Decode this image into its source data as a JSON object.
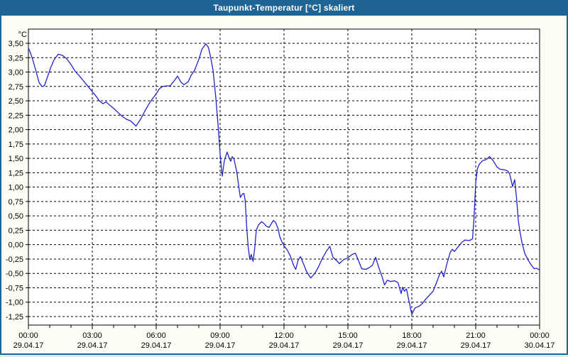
{
  "window": {
    "title": "Taupunkt-Temperatur [°C] skaliert"
  },
  "colors": {
    "titlebar": "#1E6494",
    "window_border": "#1E6494",
    "background": "#FCFEF5",
    "plot_background": "#FFFFFF",
    "grid": "#000000",
    "line": "#2222CC",
    "title_text": "#FFFFFF",
    "label_text": "#000000"
  },
  "chart_data": {
    "type": "line",
    "title": "Taupunkt-Temperatur [°C] skaliert",
    "unit_label": "°C",
    "x_unit": "hours since 29.04.17 00:00",
    "xlim": [
      0,
      24
    ],
    "ylim": [
      -1.4,
      3.76
    ],
    "grid": "dashed",
    "legend_position": "none",
    "y_ticks": [
      {
        "value": 3.5,
        "label": "3,50"
      },
      {
        "value": 3.25,
        "label": "3,25"
      },
      {
        "value": 3.0,
        "label": "3,00"
      },
      {
        "value": 2.75,
        "label": "2,75"
      },
      {
        "value": 2.5,
        "label": "2,50"
      },
      {
        "value": 2.25,
        "label": "2,25"
      },
      {
        "value": 2.0,
        "label": "2,00"
      },
      {
        "value": 1.75,
        "label": "1,75"
      },
      {
        "value": 1.5,
        "label": "1,50"
      },
      {
        "value": 1.25,
        "label": "1,25"
      },
      {
        "value": 1.0,
        "label": "1,00"
      },
      {
        "value": 0.75,
        "label": "0,75"
      },
      {
        "value": 0.5,
        "label": "0,50"
      },
      {
        "value": 0.25,
        "label": "0,25"
      },
      {
        "value": 0.0,
        "label": "0,00"
      },
      {
        "value": -0.25,
        "label": "-0,25"
      },
      {
        "value": -0.5,
        "label": "-0,50"
      },
      {
        "value": -0.75,
        "label": "-0,75"
      },
      {
        "value": -1.0,
        "label": "-1,00"
      },
      {
        "value": -1.25,
        "label": "-1,25"
      }
    ],
    "x_ticks": [
      {
        "hour": 0,
        "time": "00:00",
        "date": "29.04.17"
      },
      {
        "hour": 3,
        "time": "03:00",
        "date": "29.04.17"
      },
      {
        "hour": 6,
        "time": "06:00",
        "date": "29.04.17"
      },
      {
        "hour": 9,
        "time": "09:00",
        "date": "29.04.17"
      },
      {
        "hour": 12,
        "time": "12:00",
        "date": "29.04.17"
      },
      {
        "hour": 15,
        "time": "15:00",
        "date": "29.04.17"
      },
      {
        "hour": 18,
        "time": "18:00",
        "date": "29.04.17"
      },
      {
        "hour": 21,
        "time": "21:00",
        "date": "29.04.17"
      },
      {
        "hour": 24,
        "time": "00:00",
        "date": "30.04.17"
      }
    ],
    "minor_x_tick_step_hours": 1,
    "series": [
      {
        "name": "Taupunkt-Temperatur",
        "color": "#2222CC",
        "points": [
          [
            0.0,
            3.42
          ],
          [
            0.1,
            3.33
          ],
          [
            0.2,
            3.22
          ],
          [
            0.33,
            3.05
          ],
          [
            0.5,
            2.82
          ],
          [
            0.63,
            2.75
          ],
          [
            0.75,
            2.76
          ],
          [
            0.9,
            2.92
          ],
          [
            1.05,
            3.08
          ],
          [
            1.2,
            3.21
          ],
          [
            1.4,
            3.31
          ],
          [
            1.6,
            3.29
          ],
          [
            1.8,
            3.23
          ],
          [
            2.0,
            3.13
          ],
          [
            2.2,
            3.01
          ],
          [
            2.4,
            2.93
          ],
          [
            2.6,
            2.84
          ],
          [
            2.8,
            2.75
          ],
          [
            3.0,
            2.66
          ],
          [
            3.2,
            2.57
          ],
          [
            3.33,
            2.5
          ],
          [
            3.5,
            2.45
          ],
          [
            3.65,
            2.48
          ],
          [
            3.8,
            2.43
          ],
          [
            4.0,
            2.37
          ],
          [
            4.2,
            2.3
          ],
          [
            4.4,
            2.23
          ],
          [
            4.6,
            2.18
          ],
          [
            4.8,
            2.15
          ],
          [
            5.05,
            2.06
          ],
          [
            5.25,
            2.17
          ],
          [
            5.45,
            2.31
          ],
          [
            5.65,
            2.44
          ],
          [
            5.85,
            2.55
          ],
          [
            6.0,
            2.62
          ],
          [
            6.15,
            2.71
          ],
          [
            6.3,
            2.75
          ],
          [
            6.5,
            2.76
          ],
          [
            6.65,
            2.76
          ],
          [
            6.85,
            2.85
          ],
          [
            7.0,
            2.93
          ],
          [
            7.15,
            2.83
          ],
          [
            7.3,
            2.78
          ],
          [
            7.5,
            2.83
          ],
          [
            7.65,
            2.95
          ],
          [
            7.8,
            3.03
          ],
          [
            8.0,
            3.22
          ],
          [
            8.15,
            3.4
          ],
          [
            8.33,
            3.49
          ],
          [
            8.45,
            3.43
          ],
          [
            8.55,
            3.27
          ],
          [
            8.67,
            3.03
          ],
          [
            8.8,
            2.55
          ],
          [
            8.9,
            2.1
          ],
          [
            9.0,
            1.58
          ],
          [
            9.1,
            1.19
          ],
          [
            9.2,
            1.46
          ],
          [
            9.33,
            1.61
          ],
          [
            9.42,
            1.51
          ],
          [
            9.5,
            1.45
          ],
          [
            9.57,
            1.53
          ],
          [
            9.65,
            1.49
          ],
          [
            9.78,
            1.27
          ],
          [
            9.85,
            1.08
          ],
          [
            9.95,
            0.82
          ],
          [
            10.05,
            0.88
          ],
          [
            10.12,
            0.89
          ],
          [
            10.18,
            0.76
          ],
          [
            10.25,
            0.3
          ],
          [
            10.32,
            -0.05
          ],
          [
            10.4,
            -0.26
          ],
          [
            10.46,
            -0.17
          ],
          [
            10.55,
            -0.29
          ],
          [
            10.62,
            -0.08
          ],
          [
            10.7,
            0.25
          ],
          [
            10.8,
            0.34
          ],
          [
            10.95,
            0.4
          ],
          [
            11.05,
            0.37
          ],
          [
            11.17,
            0.32
          ],
          [
            11.3,
            0.3
          ],
          [
            11.4,
            0.36
          ],
          [
            11.5,
            0.42
          ],
          [
            11.6,
            0.39
          ],
          [
            11.72,
            0.28
          ],
          [
            11.8,
            0.14
          ],
          [
            11.9,
            0.05
          ],
          [
            12.0,
            -0.02
          ],
          [
            12.15,
            -0.09
          ],
          [
            12.3,
            -0.2
          ],
          [
            12.45,
            -0.36
          ],
          [
            12.55,
            -0.43
          ],
          [
            12.67,
            -0.26
          ],
          [
            12.78,
            -0.21
          ],
          [
            12.9,
            -0.32
          ],
          [
            13.05,
            -0.46
          ],
          [
            13.25,
            -0.58
          ],
          [
            13.45,
            -0.5
          ],
          [
            13.6,
            -0.4
          ],
          [
            13.8,
            -0.24
          ],
          [
            14.0,
            -0.11
          ],
          [
            14.15,
            -0.03
          ],
          [
            14.3,
            -0.22
          ],
          [
            14.45,
            -0.27
          ],
          [
            14.6,
            -0.33
          ],
          [
            14.8,
            -0.26
          ],
          [
            15.0,
            -0.23
          ],
          [
            15.2,
            -0.17
          ],
          [
            15.35,
            -0.15
          ],
          [
            15.5,
            -0.28
          ],
          [
            15.65,
            -0.42
          ],
          [
            15.85,
            -0.43
          ],
          [
            16.0,
            -0.4
          ],
          [
            16.15,
            -0.36
          ],
          [
            16.3,
            -0.22
          ],
          [
            16.45,
            -0.4
          ],
          [
            16.6,
            -0.55
          ],
          [
            16.72,
            -0.7
          ],
          [
            16.85,
            -0.62
          ],
          [
            17.0,
            -0.64
          ],
          [
            17.2,
            -0.63
          ],
          [
            17.35,
            -0.66
          ],
          [
            17.5,
            -0.85
          ],
          [
            17.57,
            -0.74
          ],
          [
            17.65,
            -0.81
          ],
          [
            17.75,
            -0.77
          ],
          [
            17.85,
            -0.95
          ],
          [
            18.0,
            -1.21
          ],
          [
            18.15,
            -1.1
          ],
          [
            18.35,
            -1.07
          ],
          [
            18.5,
            -1.02
          ],
          [
            18.65,
            -0.95
          ],
          [
            18.85,
            -0.87
          ],
          [
            19.0,
            -0.81
          ],
          [
            19.15,
            -0.67
          ],
          [
            19.3,
            -0.52
          ],
          [
            19.4,
            -0.46
          ],
          [
            19.5,
            -0.56
          ],
          [
            19.65,
            -0.33
          ],
          [
            19.8,
            -0.14
          ],
          [
            19.9,
            -0.08
          ],
          [
            20.0,
            -0.12
          ],
          [
            20.15,
            -0.05
          ],
          [
            20.35,
            0.04
          ],
          [
            20.5,
            0.08
          ],
          [
            20.7,
            0.07
          ],
          [
            20.85,
            0.1
          ],
          [
            20.92,
            0.45
          ],
          [
            21.0,
            1.07
          ],
          [
            21.08,
            1.32
          ],
          [
            21.17,
            1.4
          ],
          [
            21.33,
            1.46
          ],
          [
            21.5,
            1.48
          ],
          [
            21.65,
            1.53
          ],
          [
            21.8,
            1.47
          ],
          [
            22.0,
            1.35
          ],
          [
            22.15,
            1.31
          ],
          [
            22.35,
            1.3
          ],
          [
            22.5,
            1.28
          ],
          [
            22.6,
            1.22
          ],
          [
            22.67,
            1.11
          ],
          [
            22.73,
            1.01
          ],
          [
            22.83,
            1.13
          ],
          [
            22.92,
            0.8
          ],
          [
            23.0,
            0.42
          ],
          [
            23.08,
            0.22
          ],
          [
            23.17,
            0.04
          ],
          [
            23.3,
            -0.15
          ],
          [
            23.45,
            -0.26
          ],
          [
            23.6,
            -0.35
          ],
          [
            23.75,
            -0.42
          ],
          [
            23.85,
            -0.41
          ],
          [
            24.0,
            -0.44
          ]
        ]
      }
    ]
  }
}
